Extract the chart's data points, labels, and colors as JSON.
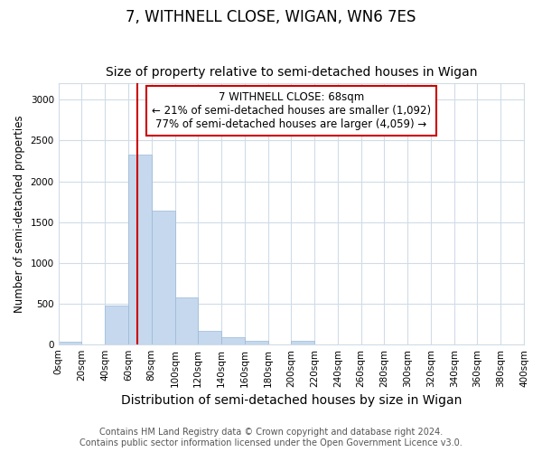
{
  "title": "7, WITHNELL CLOSE, WIGAN, WN6 7ES",
  "subtitle": "Size of property relative to semi-detached houses in Wigan",
  "xlabel": "Distribution of semi-detached houses by size in Wigan",
  "ylabel": "Number of semi-detached properties",
  "footnote1": "Contains HM Land Registry data © Crown copyright and database right 2024.",
  "footnote2": "Contains public sector information licensed under the Open Government Licence v3.0.",
  "property_size": 68,
  "annotation_line1": "7 WITHNELL CLOSE: 68sqm",
  "annotation_line2": "← 21% of semi-detached houses are smaller (1,092)",
  "annotation_line3": "77% of semi-detached houses are larger (4,059) →",
  "bin_edges": [
    0,
    20,
    40,
    60,
    80,
    100,
    120,
    140,
    160,
    180,
    200,
    220,
    240,
    260,
    280,
    300,
    320,
    340,
    360,
    380,
    400
  ],
  "bin_values": [
    30,
    0,
    480,
    2330,
    1640,
    580,
    160,
    90,
    45,
    0,
    40,
    0,
    0,
    0,
    0,
    0,
    0,
    0,
    0,
    0
  ],
  "bar_color": "#c5d8ed",
  "bar_edgecolor": "#9ab8d8",
  "vline_color": "#cc0000",
  "annotation_box_edgecolor": "#cc0000",
  "ylim": [
    0,
    3200
  ],
  "yticks": [
    0,
    500,
    1000,
    1500,
    2000,
    2500,
    3000
  ],
  "background_color": "#ffffff",
  "grid_color": "#d0dce8",
  "title_fontsize": 12,
  "subtitle_fontsize": 10,
  "xlabel_fontsize": 10,
  "ylabel_fontsize": 8.5,
  "tick_fontsize": 7.5,
  "annotation_fontsize": 8.5,
  "footnote_fontsize": 7
}
